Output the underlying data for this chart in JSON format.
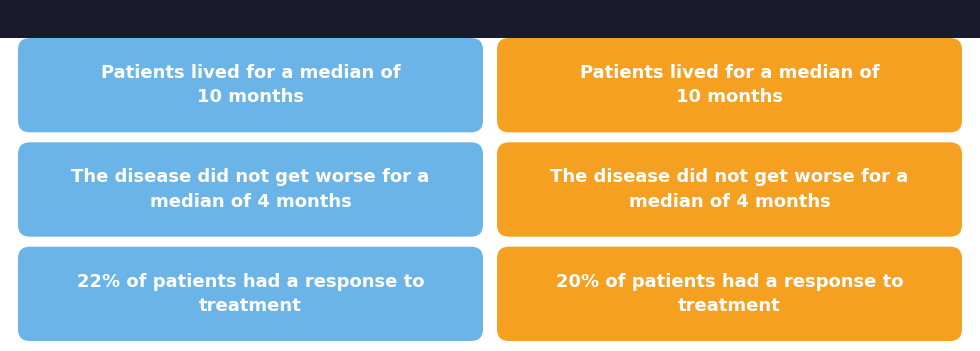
{
  "fig_bg": "#ffffff",
  "top_bar_color": "#1a1a2e",
  "box_blue": "#6ab4e8",
  "box_orange": "#f5a020",
  "text_color": "#ffffff",
  "rows": [
    {
      "left": "Patients lived for a median of\n10 months",
      "right": "Patients lived for a median of\n10 months"
    },
    {
      "left": "The disease did not get worse for a\nmedian of 4 months",
      "right": "The disease did not get worse for a\nmedian of 4 months"
    },
    {
      "left": "22% of patients had a response to\ntreatment",
      "right": "20% of patients had a response to\ntreatment"
    }
  ],
  "font_size": 13.0,
  "font_weight": "bold",
  "fig_width": 9.8,
  "fig_height": 3.51,
  "dpi": 100
}
